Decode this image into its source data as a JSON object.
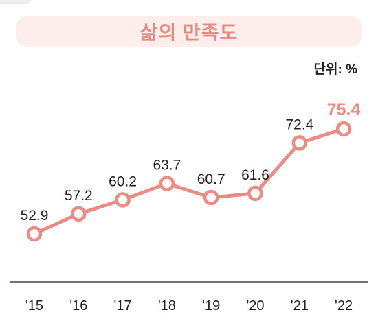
{
  "title": "삶의 만족도",
  "unit_label": "단위: %",
  "colors": {
    "accent": "#ea8b84",
    "title_bg": "#fdeeec",
    "title_text": "#e88a82",
    "axis": "#444444",
    "text": "#222222"
  },
  "chart_data": {
    "type": "line",
    "categories": [
      "'15",
      "'16",
      "'17",
      "'18",
      "'19",
      "'20",
      "'21",
      "'22"
    ],
    "values": [
      52.9,
      57.2,
      60.2,
      63.7,
      60.7,
      61.6,
      72.4,
      75.4
    ],
    "value_labels": [
      "52.9",
      "57.2",
      "60.2",
      "63.7",
      "60.7",
      "61.6",
      "72.4",
      "75.4"
    ],
    "highlight_index": 7,
    "title": "삶의 만족도",
    "ylabel": "단위: %",
    "grid": false
  }
}
